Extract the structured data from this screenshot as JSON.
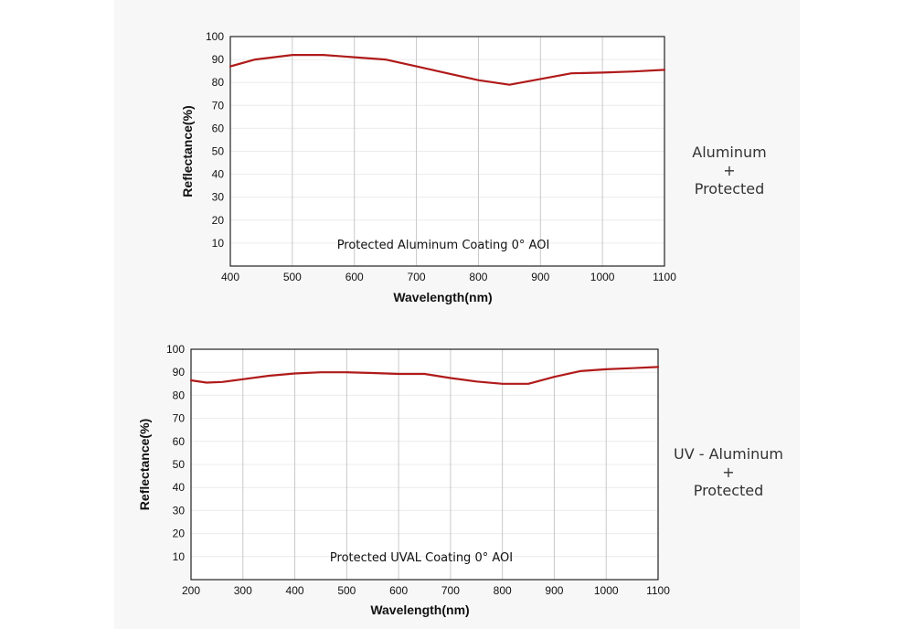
{
  "colors": {
    "line": "#b01a1a",
    "grid": "#c8c8c8",
    "hgrid": "#ececec",
    "frame": "#222222",
    "panel": "#f7f7f7"
  },
  "chart_data": [
    {
      "type": "line",
      "title": "",
      "annotation": "Protected Aluminum Coating  0°  AOI",
      "xlabel": "Wavelength(nm)",
      "ylabel": "Reflectance(%)",
      "xlim": [
        400,
        1100
      ],
      "ylim": [
        0,
        100
      ],
      "xticks": [
        400,
        500,
        600,
        700,
        800,
        900,
        1000,
        1100
      ],
      "yticks": [
        10,
        20,
        30,
        40,
        50,
        60,
        70,
        80,
        90,
        100
      ],
      "grid": "vertical",
      "series": [
        {
          "x": [
            400,
            440,
            500,
            550,
            600,
            650,
            700,
            750,
            800,
            850,
            900,
            950,
            1000,
            1050,
            1100
          ],
          "y": [
            87,
            90,
            92,
            92,
            91,
            90,
            87,
            84,
            81,
            79,
            81.5,
            84,
            84.3,
            84.8,
            85.5
          ]
        }
      ],
      "side_label": [
        "Aluminum",
        "+",
        "Protected"
      ]
    },
    {
      "type": "line",
      "title": "",
      "annotation": "Protected UVAL Coating  0°  AOI",
      "xlabel": "Wavelength(nm)",
      "ylabel": "Reflectance(%)",
      "xlim": [
        200,
        1100
      ],
      "ylim": [
        0,
        100
      ],
      "xticks": [
        200,
        300,
        400,
        500,
        600,
        700,
        800,
        900,
        1000,
        1100
      ],
      "yticks": [
        10,
        20,
        30,
        40,
        50,
        60,
        70,
        80,
        90,
        100
      ],
      "grid": "vertical",
      "series": [
        {
          "x": [
            200,
            230,
            260,
            300,
            350,
            400,
            450,
            500,
            550,
            600,
            650,
            700,
            750,
            800,
            850,
            900,
            950,
            1000,
            1050,
            1100
          ],
          "y": [
            86.5,
            85.5,
            85.8,
            87,
            88.5,
            89.5,
            90,
            90,
            89.7,
            89.3,
            89.3,
            87.5,
            86,
            85,
            85,
            88,
            90.5,
            91.3,
            91.8,
            92.3
          ]
        }
      ],
      "side_label": [
        "UV - Aluminum",
        "+",
        "Protected"
      ]
    }
  ]
}
